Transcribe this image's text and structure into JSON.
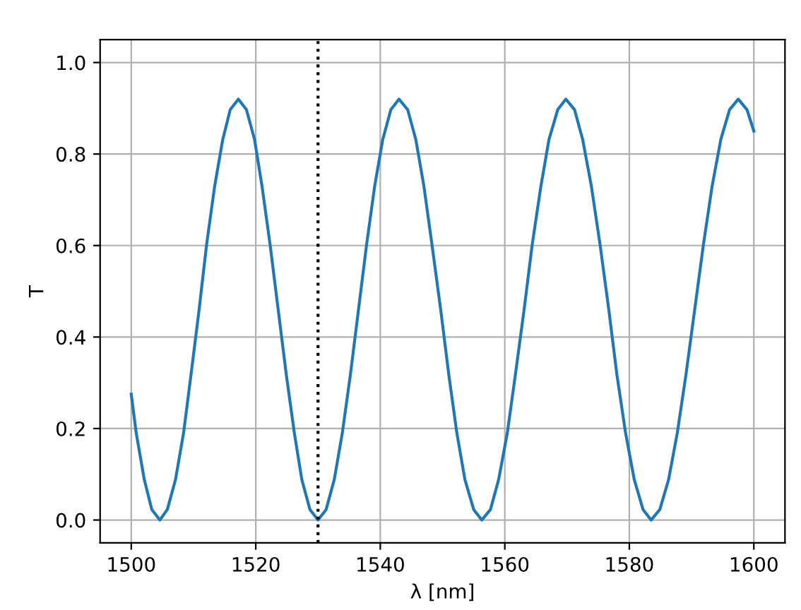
{
  "chart_data": {
    "type": "line",
    "xlabel": "λ [nm]",
    "ylabel": "T",
    "series": [
      {
        "color": "#1f77b4",
        "x": [
          1500,
          1500.8,
          1502.1,
          1503.3,
          1504.6,
          1505.8,
          1507.1,
          1508.4,
          1509.6,
          1510.9,
          1512.1,
          1513.4,
          1514.7,
          1515.9,
          1517.2,
          1518.5,
          1519.8,
          1521.0,
          1522.3,
          1523.6,
          1524.9,
          1526.2,
          1527.4,
          1528.7,
          1530.0,
          1531.3,
          1532.6,
          1533.9,
          1535.2,
          1536.5,
          1537.8,
          1539.1,
          1540.4,
          1541.7,
          1543.0,
          1544.4,
          1545.7,
          1547.0,
          1548.3,
          1549.7,
          1551.0,
          1552.3,
          1553.6,
          1555.0,
          1556.3,
          1557.7,
          1559.0,
          1560.4,
          1561.7,
          1563.1,
          1564.4,
          1565.8,
          1567.1,
          1568.5,
          1569.8,
          1571.2,
          1572.5,
          1573.9,
          1575.3,
          1576.7,
          1578.0,
          1579.4,
          1580.8,
          1582.2,
          1583.5,
          1584.9,
          1586.3,
          1587.7,
          1589.1,
          1590.5,
          1591.9,
          1593.3,
          1594.7,
          1596.1,
          1597.5,
          1598.9,
          1600
        ],
        "values": [
          0.275,
          0.19,
          0.088,
          0.023,
          0,
          0.023,
          0.088,
          0.19,
          0.318,
          0.46,
          0.602,
          0.73,
          0.832,
          0.897,
          0.92,
          0.897,
          0.832,
          0.73,
          0.602,
          0.46,
          0.318,
          0.19,
          0.088,
          0.023,
          0,
          0.023,
          0.088,
          0.19,
          0.318,
          0.46,
          0.602,
          0.73,
          0.832,
          0.897,
          0.92,
          0.897,
          0.832,
          0.73,
          0.602,
          0.46,
          0.318,
          0.19,
          0.088,
          0.023,
          0,
          0.023,
          0.088,
          0.19,
          0.318,
          0.46,
          0.602,
          0.73,
          0.832,
          0.897,
          0.92,
          0.897,
          0.832,
          0.73,
          0.602,
          0.46,
          0.318,
          0.19,
          0.088,
          0.023,
          0,
          0.023,
          0.088,
          0.19,
          0.318,
          0.46,
          0.602,
          0.73,
          0.832,
          0.897,
          0.92,
          0.897,
          0.85
        ]
      }
    ],
    "ref_lines": [
      {
        "axis": "x",
        "value": 1530,
        "color": "#000000",
        "line_style": "dotted"
      }
    ],
    "xlim": [
      1495,
      1605
    ],
    "xticks": [
      1500,
      1520,
      1540,
      1560,
      1580,
      1600
    ],
    "ylim": [
      -0.05,
      1.05
    ],
    "yticks": [
      {
        "value": 0,
        "label": "0.0"
      },
      {
        "value": 0.2,
        "label": "0.2"
      },
      {
        "value": 0.4,
        "label": "0.4"
      },
      {
        "value": 0.6,
        "label": "0.6"
      },
      {
        "value": 0.8,
        "label": "0.8"
      },
      {
        "value": 1.0,
        "label": "1.0"
      }
    ],
    "grid": true,
    "line_style": "solid",
    "marker": "none"
  }
}
